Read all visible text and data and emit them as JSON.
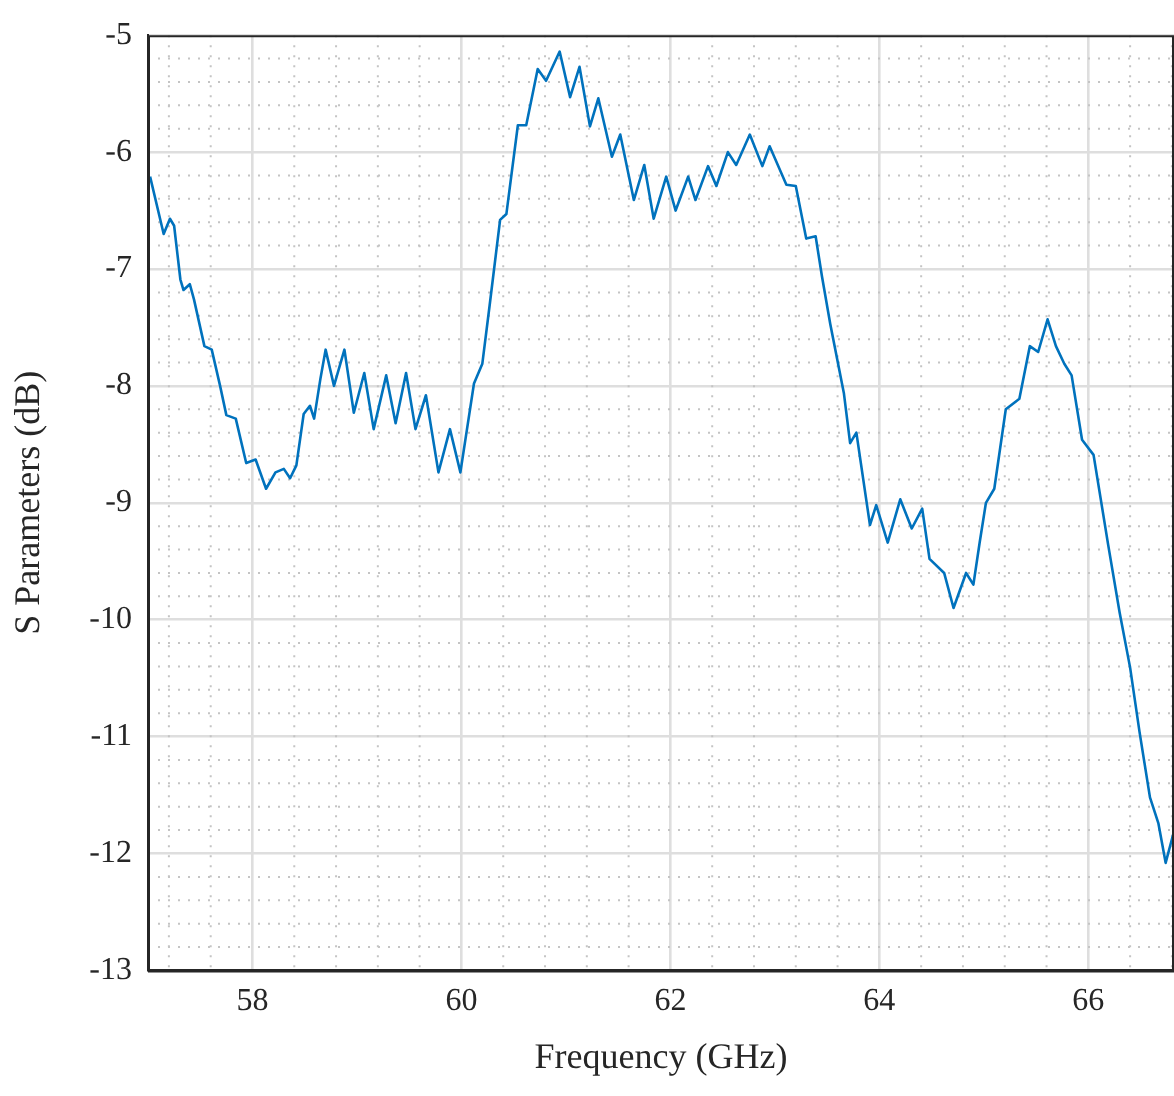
{
  "chart_data": {
    "type": "line",
    "xlabel": "Frequency (GHz)",
    "ylabel": "S Parameters (dB)",
    "xlim": [
      57,
      66.82
    ],
    "xticks": [
      58,
      60,
      62,
      64,
      66
    ],
    "ylim": [
      -13,
      -5
    ],
    "yticks": [
      -13,
      -12,
      -11,
      -10,
      -9,
      -8,
      -7,
      -6,
      -5
    ],
    "grid": true,
    "marker": "none",
    "line_style": "solid",
    "series": [
      {
        "color": "#0072bd",
        "x": [
          57.02,
          57.15,
          57.21,
          57.25,
          57.31,
          57.34,
          57.4,
          57.44,
          57.54,
          57.61,
          57.69,
          57.75,
          57.84,
          57.94,
          58.03,
          58.13,
          58.22,
          58.3,
          58.36,
          58.42,
          58.49,
          58.55,
          58.59,
          58.65,
          58.7,
          58.78,
          58.88,
          58.97,
          59.07,
          59.16,
          59.28,
          59.37,
          59.47,
          59.56,
          59.66,
          59.78,
          59.89,
          59.99,
          60.12,
          60.2,
          60.27,
          60.37,
          60.43,
          60.54,
          60.62,
          60.73,
          60.81,
          60.94,
          61.04,
          61.13,
          61.23,
          61.31,
          61.44,
          61.52,
          61.65,
          61.75,
          61.84,
          61.96,
          62.05,
          62.17,
          62.24,
          62.36,
          62.44,
          62.55,
          62.63,
          62.76,
          62.88,
          62.95,
          63.11,
          63.2,
          63.3,
          63.39,
          63.45,
          63.53,
          63.66,
          63.72,
          63.78,
          63.91,
          63.97,
          64.08,
          64.2,
          64.31,
          64.41,
          64.48,
          64.62,
          64.71,
          64.83,
          64.9,
          64.96,
          65.02,
          65.1,
          65.21,
          65.34,
          65.44,
          65.52,
          65.61,
          65.69,
          65.77,
          65.84,
          65.94,
          66.05,
          66.19,
          66.3,
          66.4,
          66.49,
          66.59,
          66.67,
          66.74,
          66.82
        ],
        "values": [
          -6.21,
          -6.7,
          -6.57,
          -6.63,
          -7.09,
          -7.18,
          -7.13,
          -7.26,
          -7.66,
          -7.69,
          -8.0,
          -8.25,
          -8.28,
          -8.66,
          -8.63,
          -8.88,
          -8.74,
          -8.71,
          -8.79,
          -8.68,
          -8.24,
          -8.17,
          -8.28,
          -7.94,
          -7.69,
          -8.0,
          -7.69,
          -8.23,
          -7.89,
          -8.37,
          -7.91,
          -8.32,
          -7.89,
          -8.37,
          -8.08,
          -8.74,
          -8.37,
          -8.74,
          -7.98,
          -7.81,
          -7.31,
          -6.58,
          -6.53,
          -5.77,
          -5.77,
          -5.29,
          -5.39,
          -5.14,
          -5.53,
          -5.27,
          -5.78,
          -5.54,
          -6.04,
          -5.85,
          -6.41,
          -6.11,
          -6.57,
          -6.21,
          -6.5,
          -6.21,
          -6.41,
          -6.12,
          -6.29,
          -6.0,
          -6.11,
          -5.85,
          -6.12,
          -5.95,
          -6.28,
          -6.29,
          -6.74,
          -6.72,
          -7.06,
          -7.47,
          -8.06,
          -8.49,
          -8.4,
          -9.19,
          -9.02,
          -9.34,
          -8.97,
          -9.22,
          -9.05,
          -9.48,
          -9.6,
          -9.9,
          -9.6,
          -9.7,
          -9.34,
          -9.0,
          -8.88,
          -8.2,
          -8.11,
          -7.66,
          -7.71,
          -7.43,
          -7.66,
          -7.81,
          -7.91,
          -8.46,
          -8.59,
          -9.36,
          -9.94,
          -10.41,
          -10.96,
          -11.52,
          -11.74,
          -12.08,
          -11.81
        ]
      }
    ]
  }
}
